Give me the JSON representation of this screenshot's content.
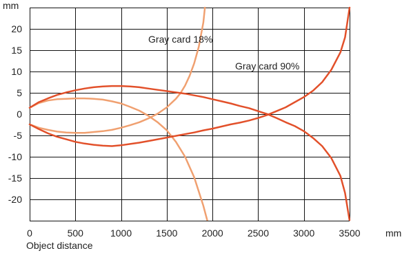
{
  "chart_data": {
    "type": "line",
    "y_unit": "mm",
    "x_unit": "mm",
    "xlabel": "Object distance",
    "xlim": [
      0,
      3500
    ],
    "ylim": [
      -25,
      25
    ],
    "x_ticks": [
      0,
      500,
      1000,
      1500,
      2000,
      2500,
      3000,
      3500
    ],
    "y_ticks": [
      20,
      15,
      10,
      5,
      0,
      -5,
      -10,
      -15,
      -20
    ],
    "grid": true,
    "colors": {
      "gray18": "#f0a070",
      "gray90": "#e2502a",
      "grid": "#111111"
    },
    "annotations": [
      {
        "text": "Gray card 18%",
        "x": 1650,
        "y": 17.6,
        "series": "gray18"
      },
      {
        "text": "Gray card 90%",
        "x": 2600,
        "y": 11.3,
        "series": "gray90"
      }
    ],
    "series": [
      {
        "id": "gray18_upper",
        "color_key": "gray18",
        "points": [
          [
            0,
            1.5
          ],
          [
            100,
            2.6
          ],
          [
            200,
            3.2
          ],
          [
            300,
            3.5
          ],
          [
            400,
            3.6
          ],
          [
            500,
            3.7
          ],
          [
            600,
            3.7
          ],
          [
            700,
            3.6
          ],
          [
            800,
            3.4
          ],
          [
            900,
            3.0
          ],
          [
            1000,
            2.5
          ],
          [
            1100,
            1.7
          ],
          [
            1200,
            0.8
          ],
          [
            1300,
            -0.4
          ],
          [
            1400,
            -1.9
          ],
          [
            1500,
            -3.8
          ],
          [
            1600,
            -6.5
          ],
          [
            1700,
            -10.0
          ],
          [
            1800,
            -14.8
          ],
          [
            1900,
            -21.5
          ],
          [
            1950,
            -25.5
          ]
        ]
      },
      {
        "id": "gray18_lower",
        "color_key": "gray18",
        "points": [
          [
            0,
            -2.4
          ],
          [
            100,
            -3.2
          ],
          [
            200,
            -3.7
          ],
          [
            300,
            -4.1
          ],
          [
            400,
            -4.3
          ],
          [
            500,
            -4.4
          ],
          [
            600,
            -4.4
          ],
          [
            700,
            -4.2
          ],
          [
            800,
            -4.0
          ],
          [
            900,
            -3.7
          ],
          [
            1000,
            -3.2
          ],
          [
            1100,
            -2.6
          ],
          [
            1200,
            -1.9
          ],
          [
            1300,
            -1.0
          ],
          [
            1400,
            0.1
          ],
          [
            1500,
            1.6
          ],
          [
            1600,
            3.6
          ],
          [
            1650,
            4.9
          ],
          [
            1700,
            6.7
          ],
          [
            1750,
            9.0
          ],
          [
            1800,
            11.9
          ],
          [
            1850,
            15.8
          ],
          [
            1900,
            21.5
          ],
          [
            1920,
            25.5
          ]
        ]
      },
      {
        "id": "gray90_upper",
        "color_key": "gray90",
        "points": [
          [
            0,
            1.5
          ],
          [
            100,
            2.8
          ],
          [
            200,
            3.7
          ],
          [
            300,
            4.5
          ],
          [
            400,
            5.1
          ],
          [
            500,
            5.6
          ],
          [
            600,
            6.0
          ],
          [
            700,
            6.3
          ],
          [
            800,
            6.5
          ],
          [
            900,
            6.6
          ],
          [
            1000,
            6.6
          ],
          [
            1100,
            6.5
          ],
          [
            1200,
            6.3
          ],
          [
            1300,
            6.0
          ],
          [
            1400,
            5.7
          ],
          [
            1500,
            5.4
          ],
          [
            1600,
            5.1
          ],
          [
            1700,
            4.8
          ],
          [
            1800,
            4.4
          ],
          [
            1900,
            4.0
          ],
          [
            2000,
            3.5
          ],
          [
            2100,
            3.0
          ],
          [
            2200,
            2.5
          ],
          [
            2300,
            1.9
          ],
          [
            2400,
            1.4
          ],
          [
            2500,
            0.7
          ],
          [
            2600,
            0.0
          ],
          [
            2700,
            -0.9
          ],
          [
            2800,
            -1.9
          ],
          [
            2900,
            -2.8
          ],
          [
            3000,
            -4.0
          ],
          [
            3100,
            -5.6
          ],
          [
            3200,
            -7.5
          ],
          [
            3300,
            -10.3
          ],
          [
            3400,
            -14.5
          ],
          [
            3450,
            -18.5
          ],
          [
            3500,
            -25.0
          ]
        ]
      },
      {
        "id": "gray90_lower",
        "color_key": "gray90",
        "points": [
          [
            0,
            -2.4
          ],
          [
            100,
            -3.5
          ],
          [
            200,
            -4.5
          ],
          [
            300,
            -5.3
          ],
          [
            400,
            -5.9
          ],
          [
            500,
            -6.5
          ],
          [
            600,
            -6.9
          ],
          [
            700,
            -7.2
          ],
          [
            800,
            -7.4
          ],
          [
            900,
            -7.5
          ],
          [
            1000,
            -7.3
          ],
          [
            1100,
            -7.0
          ],
          [
            1200,
            -6.7
          ],
          [
            1300,
            -6.3
          ],
          [
            1400,
            -5.9
          ],
          [
            1500,
            -5.5
          ],
          [
            1600,
            -5.1
          ],
          [
            1700,
            -4.7
          ],
          [
            1800,
            -4.3
          ],
          [
            1900,
            -3.8
          ],
          [
            2000,
            -3.4
          ],
          [
            2100,
            -2.9
          ],
          [
            2200,
            -2.4
          ],
          [
            2300,
            -2.0
          ],
          [
            2400,
            -1.5
          ],
          [
            2500,
            -0.9
          ],
          [
            2600,
            -0.2
          ],
          [
            2700,
            0.7
          ],
          [
            2800,
            1.6
          ],
          [
            2900,
            2.8
          ],
          [
            3000,
            4.0
          ],
          [
            3100,
            5.5
          ],
          [
            3200,
            7.5
          ],
          [
            3300,
            10.4
          ],
          [
            3400,
            14.5
          ],
          [
            3450,
            18.0
          ],
          [
            3500,
            25.0
          ]
        ]
      }
    ]
  }
}
